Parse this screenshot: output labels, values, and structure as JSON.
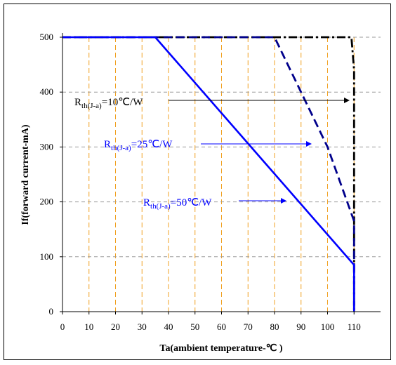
{
  "chart_data": {
    "type": "line",
    "title": "",
    "xlabel": "Ta(ambient temperature-℃ )",
    "ylabel": "If(forward current-mA)",
    "xlim": [
      0,
      120
    ],
    "ylim": [
      0,
      500
    ],
    "xticks": [
      "0",
      "10",
      "20",
      "30",
      "40",
      "50",
      "60",
      "70",
      "80",
      "90",
      "100",
      "110"
    ],
    "yticks": [
      "0",
      "100",
      "200",
      "300",
      "400",
      "500"
    ],
    "grid": {
      "x": "orange dashed",
      "y": "gray dashed"
    },
    "series": [
      {
        "color": "#000000",
        "style": "dash-dot",
        "x": [
          0,
          109,
          110,
          110
        ],
        "y": [
          500,
          500,
          440,
          0
        ]
      },
      {
        "color": "#00008b",
        "style": "dashed",
        "x": [
          0,
          80,
          100,
          110,
          110
        ],
        "y": [
          500,
          500,
          300,
          165,
          0
        ]
      },
      {
        "color": "#0000ff",
        "style": "solid",
        "x": [
          0,
          35,
          110,
          110
        ],
        "y": [
          500,
          500,
          85,
          0
        ]
      }
    ],
    "annotations": [
      {
        "main": "R",
        "sub": "th(J-a)",
        "rest": "=10℃/W",
        "color": "#000000"
      },
      {
        "main": "R",
        "sub": "th(J-a)",
        "rest": "=25℃/W",
        "color": "#0000ff"
      },
      {
        "main": "R",
        "sub": "th(J-a)",
        "rest": "=50℃/W",
        "color": "#0000ff"
      }
    ]
  }
}
